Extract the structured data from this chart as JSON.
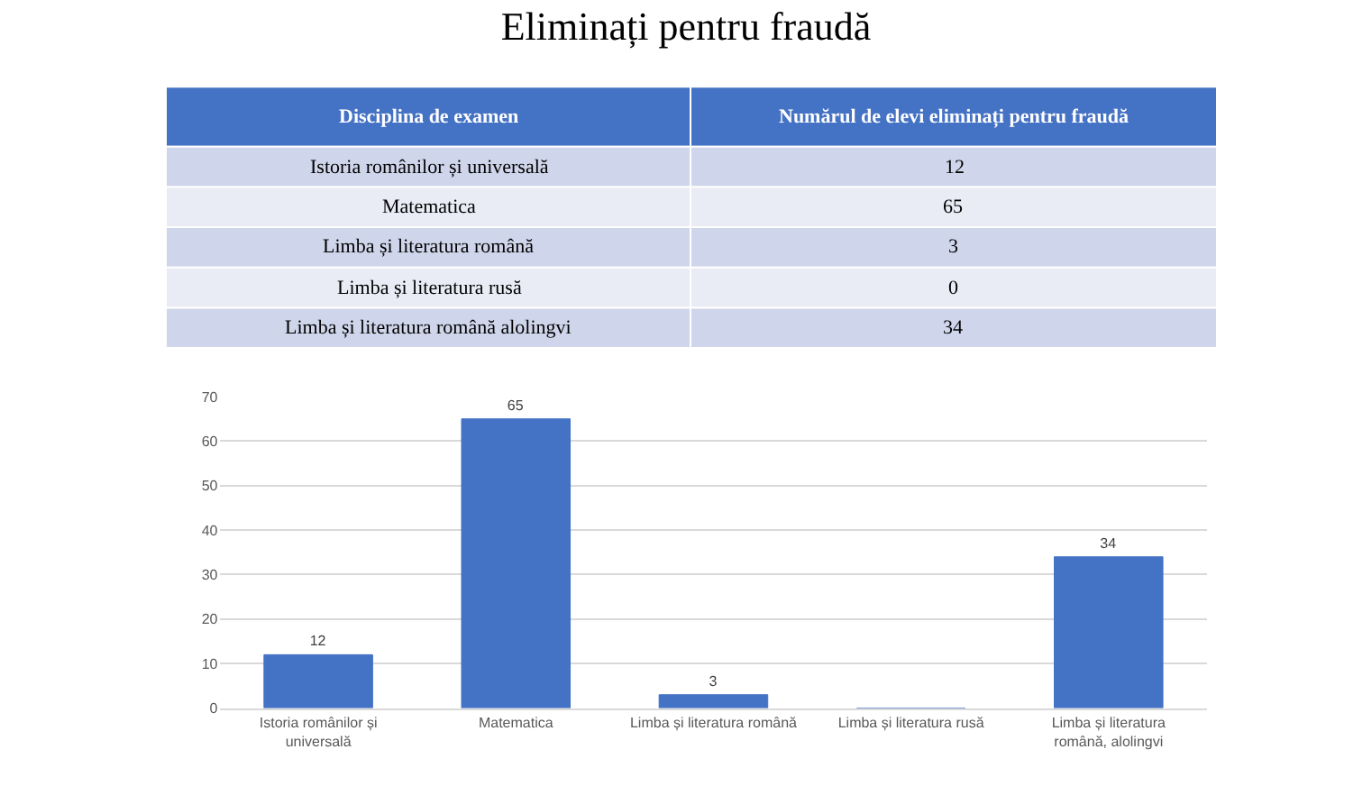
{
  "chart_data": [
    {
      "type": "other",
      "title": "Eliminați pentru fraudă",
      "annotations": [
        "Disciplina de examen",
        "Numărul de elevi eliminați pentru fraudă"
      ],
      "categories": [
        "Istoria românilor și universală",
        "Matematica",
        "Limba și literatura română",
        "Limba și literatura rusă",
        "Limba și literatura română alolingvi"
      ],
      "values": [
        12,
        65,
        3,
        0,
        34
      ],
      "data_labels": true
    },
    {
      "type": "bar",
      "categories": [
        "Istoria românilor și universală",
        "Matematica",
        "Limba și literatura română",
        "Limba și literatura rusă",
        "Limba și literatura română, alolingvi"
      ],
      "values": [
        12,
        65,
        3,
        0,
        34
      ],
      "value_labels": [
        "12",
        "65",
        "3",
        null,
        "34"
      ],
      "color": "#4472c4",
      "ylim": [
        0,
        70
      ],
      "yticks": [
        0,
        10,
        20,
        30,
        40,
        50,
        60,
        70
      ],
      "grid": "y"
    }
  ]
}
